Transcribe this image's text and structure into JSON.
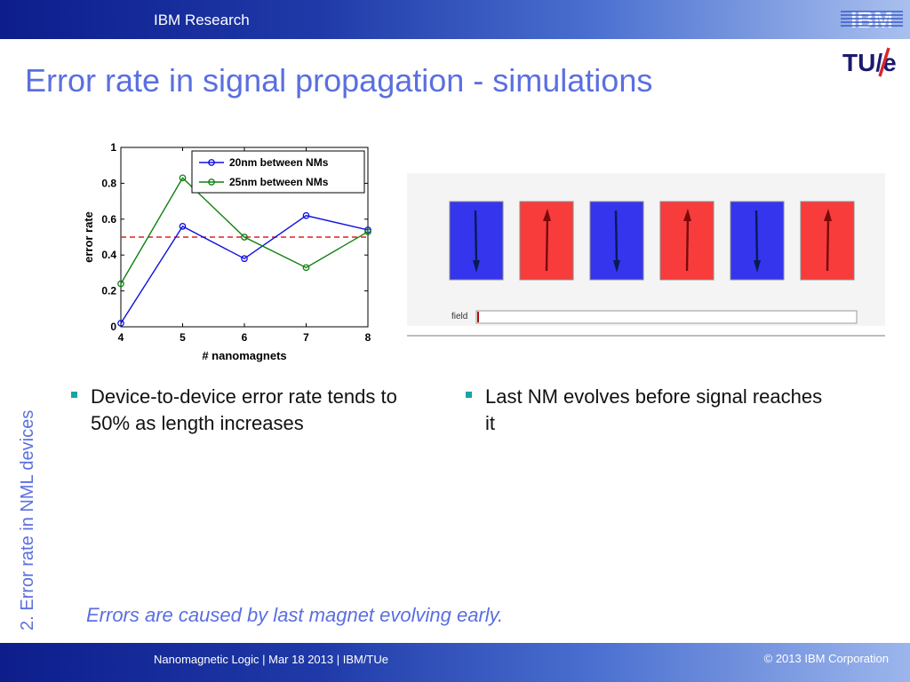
{
  "header": {
    "org": "IBM Research",
    "ibm_logo_text": "IBM",
    "tue_logo_text": "TU/e"
  },
  "slide": {
    "title": "Error rate in signal propagation - simulations",
    "section_label": "2. Error rate in NML devices"
  },
  "chart_data": {
    "type": "line",
    "xlabel": "# nanomagnets",
    "ylabel": "error rate",
    "xlim": [
      4,
      8
    ],
    "ylim": [
      0,
      1
    ],
    "x_ticks": [
      "4",
      "5",
      "6",
      "7",
      "8"
    ],
    "y_ticks": [
      "0",
      "0.2",
      "0.4",
      "0.6",
      "0.8",
      "1"
    ],
    "x": [
      4,
      5,
      6,
      7,
      8
    ],
    "series": [
      {
        "name": "20nm between NMs",
        "color": "#1010e0",
        "values": [
          0.02,
          0.56,
          0.38,
          0.62,
          0.54
        ]
      },
      {
        "name": "25nm between NMs",
        "color": "#108010",
        "values": [
          0.24,
          0.83,
          0.5,
          0.33,
          0.53
        ]
      }
    ],
    "reference_line": {
      "y": 0.5,
      "color": "#e02020",
      "style": "dashed"
    },
    "legend_position": "top-right",
    "grid": false
  },
  "simulation": {
    "field_label": "field",
    "magnets": [
      {
        "color": "#3535ee",
        "arrow": "down"
      },
      {
        "color": "#f83c3c",
        "arrow": "up"
      },
      {
        "color": "#3535ee",
        "arrow": "down"
      },
      {
        "color": "#f83c3c",
        "arrow": "up"
      },
      {
        "color": "#3535ee",
        "arrow": "down"
      },
      {
        "color": "#f83c3c",
        "arrow": "up"
      }
    ],
    "field_level": 0.0
  },
  "bullets_left": [
    "Device-to-device error rate tends to 50% as length increases"
  ],
  "bullets_right": [
    "Last NM evolves before signal reaches it"
  ],
  "footnote": "Errors are caused by last magnet evolving early.",
  "footer": {
    "left": "Nanomagnetic Logic | Mar 18 2013 |  IBM/TUe",
    "right": "© 2013 IBM Corporation"
  },
  "colors": {
    "title": "#5a6fe0",
    "bullet": "#19a4a4",
    "bar": "#1f3aa8"
  }
}
